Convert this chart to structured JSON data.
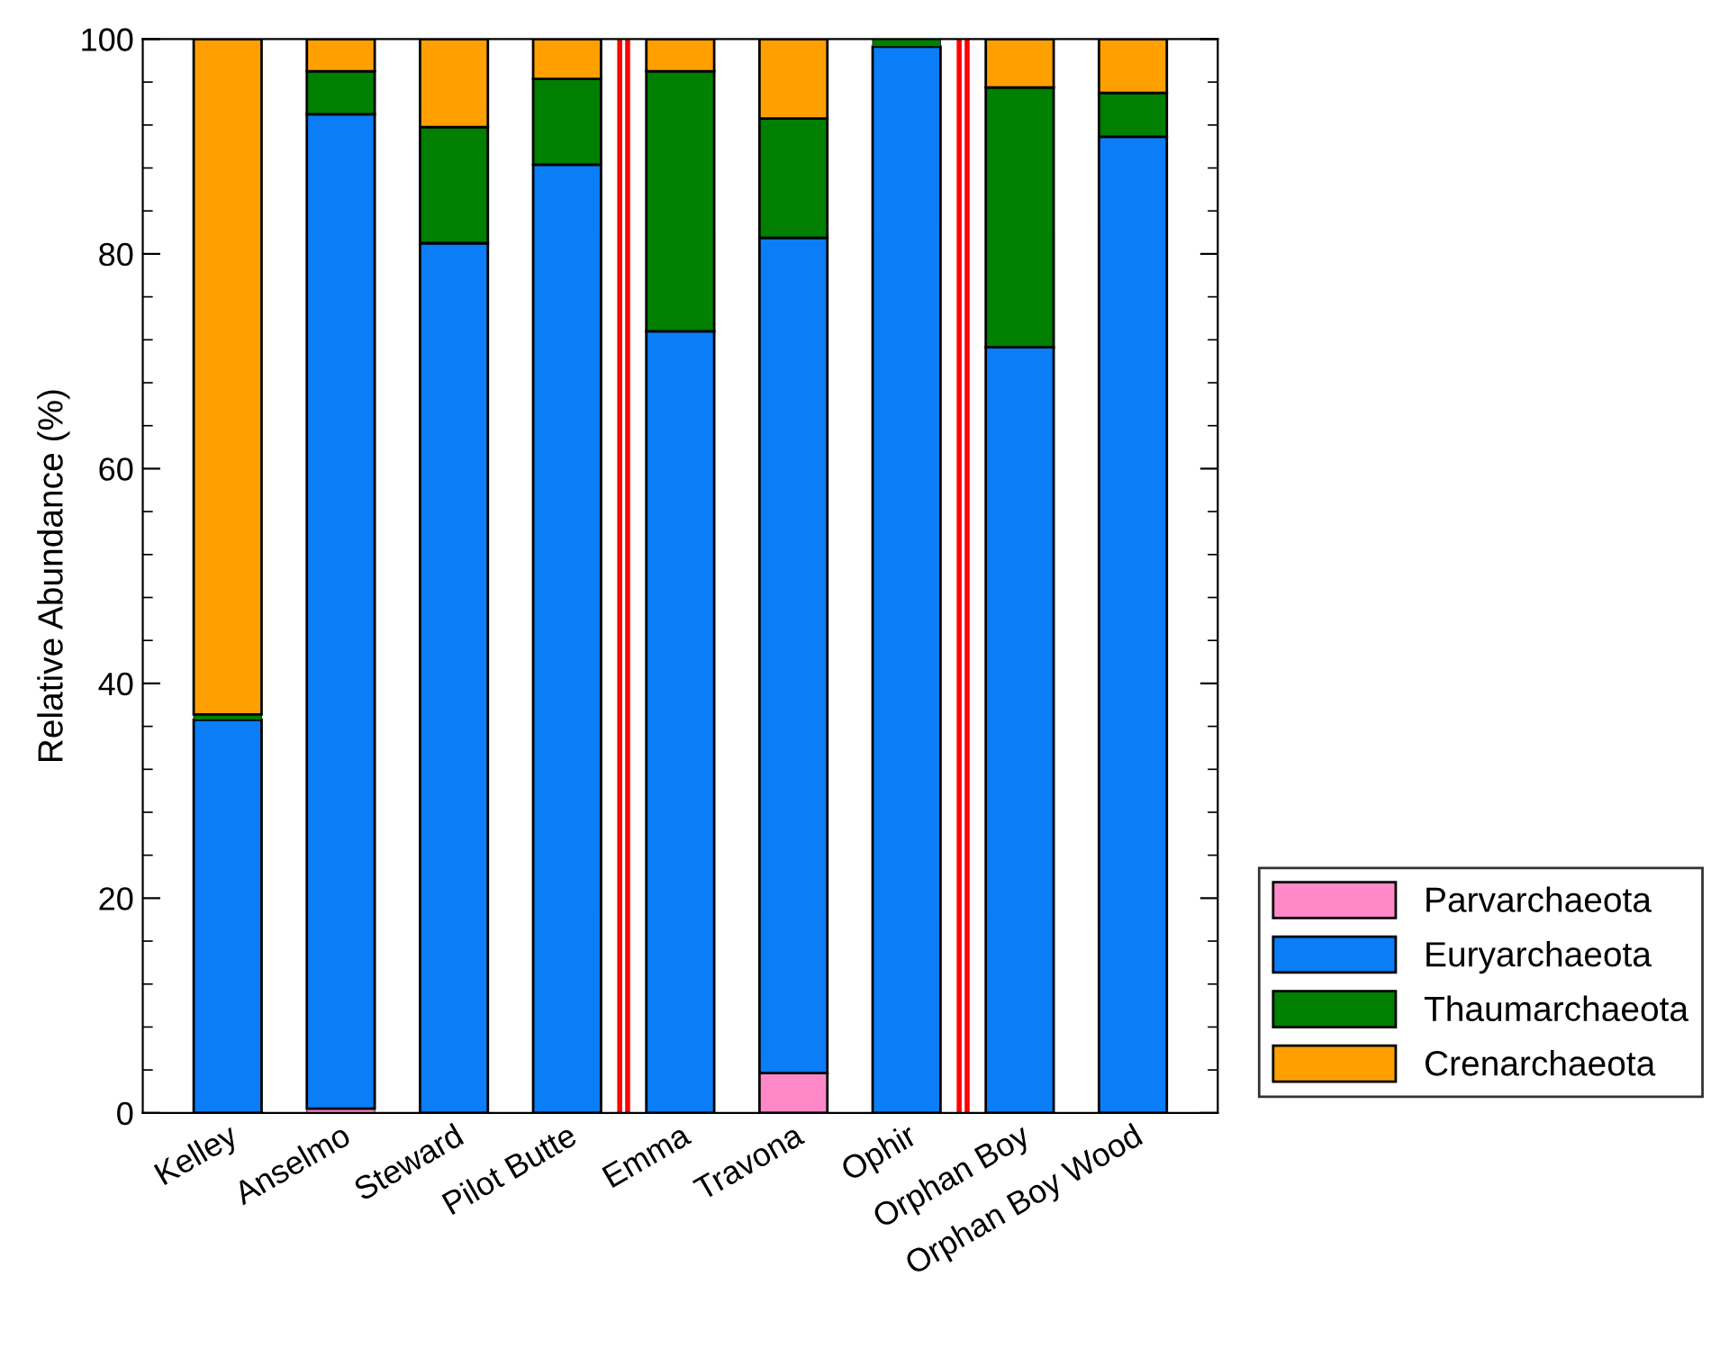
{
  "chart_data": {
    "type": "bar",
    "stacked": true,
    "ylabel": "Relative Abundance (%)",
    "categories": [
      "Kelley",
      "Anselmo",
      "Steward",
      "Pilot Butte",
      "Emma",
      "Travona",
      "Ophir",
      "Orphan Boy",
      "Orphan Boy Wood"
    ],
    "series": [
      {
        "name": "Parvarchaeota",
        "color": "#ff88c8",
        "values": [
          0,
          0.4,
          0,
          0,
          0,
          3.7,
          0,
          0,
          0
        ]
      },
      {
        "name": "Euryarchaeota",
        "color": "#0a7df7",
        "values": [
          36.6,
          92.6,
          81.0,
          88.3,
          72.8,
          77.8,
          99.3,
          71.3,
          90.9
        ]
      },
      {
        "name": "Thaumarchaeota",
        "color": "#007f00",
        "values": [
          0.5,
          4.0,
          10.8,
          8.0,
          24.2,
          11.1,
          0.7,
          24.2,
          4.1
        ]
      },
      {
        "name": "Crenarchaeota",
        "color": "#ffa000",
        "values": [
          62.9,
          3.0,
          8.2,
          3.7,
          3.0,
          7.4,
          0,
          4.5,
          5.0
        ]
      }
    ],
    "ylim": [
      0,
      100
    ],
    "yticks": [
      0,
      20,
      40,
      60,
      80,
      100
    ],
    "legend": "bottom right",
    "grid": false
  }
}
